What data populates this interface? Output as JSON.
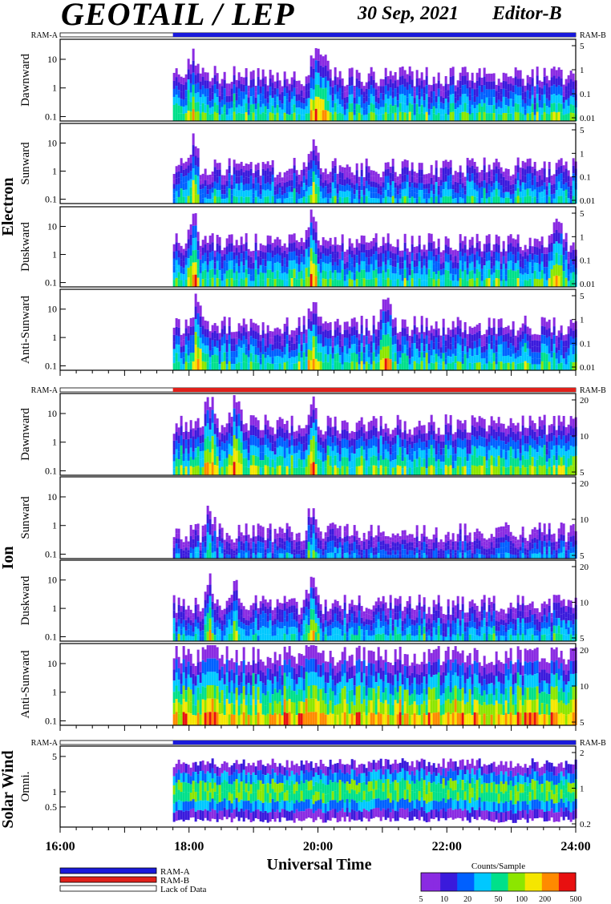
{
  "header": {
    "title": "GEOTAIL / LEP",
    "date": "30 Sep, 2021",
    "editor": "Editor-B"
  },
  "colors": {
    "ram_a": "#1a1adb",
    "ram_b": "#e0201a",
    "lack_of_data": "#ffffff",
    "background": "#ffffff"
  },
  "chart_data": {
    "type": "heatmap",
    "xlabel": "Universal Time",
    "x_ticks": [
      "16:00",
      "18:00",
      "20:00",
      "22:00",
      "24:00"
    ],
    "x_range_hours": [
      16,
      24
    ],
    "data_start_hour": 17.75,
    "sections": [
      {
        "group": "Electron",
        "ram_bar": {
          "left_label": "RAM-A",
          "right_label": "RAM-B",
          "mode": "RAM-A"
        },
        "panels": [
          {
            "ylabel": "Dawnward",
            "y_scale": "log",
            "ylim": [
              0.07,
              50
            ],
            "yticks": [
              "0.1",
              "1",
              "10"
            ],
            "right_ticks": [
              "0.01",
              "0.1",
              "1",
              "5"
            ],
            "level": 0.55,
            "spikes": [
              18.05,
              19.95,
              20.1
            ]
          },
          {
            "ylabel": "Sunward",
            "y_scale": "log",
            "ylim": [
              0.07,
              50
            ],
            "yticks": [
              "0.1",
              "1",
              "10"
            ],
            "right_ticks": [
              "0.01",
              "0.1",
              "1",
              "5"
            ],
            "level": 0.45,
            "spikes": [
              18.05,
              19.9
            ]
          },
          {
            "ylabel": "Duskward",
            "y_scale": "log",
            "ylim": [
              0.07,
              50
            ],
            "yticks": [
              "0.1",
              "1",
              "10"
            ],
            "right_ticks": [
              "0.01",
              "0.1",
              "1",
              "5"
            ],
            "level": 0.55,
            "spikes": [
              18.05,
              19.9,
              23.7
            ]
          },
          {
            "ylabel": "Anti-Sunward",
            "y_scale": "log",
            "ylim": [
              0.07,
              50
            ],
            "yticks": [
              "0.1",
              "1",
              "10"
            ],
            "right_ticks": [
              "0.01",
              "0.1",
              "1",
              "5"
            ],
            "level": 0.55,
            "spikes": [
              18.1,
              19.9,
              21.05
            ]
          }
        ]
      },
      {
        "group": "Ion",
        "ram_bar": {
          "left_label": "RAM-A",
          "right_label": "RAM-B",
          "mode": "RAM-B"
        },
        "panels": [
          {
            "ylabel": "Dawnward",
            "y_scale": "log",
            "ylim": [
              0.07,
              50
            ],
            "yticks": [
              "0.1",
              "1",
              "10"
            ],
            "right_ticks": [
              "5",
              "10",
              "20"
            ],
            "level": 0.62,
            "spikes": [
              18.3,
              18.7,
              19.9
            ]
          },
          {
            "ylabel": "Sunward",
            "y_scale": "log",
            "ylim": [
              0.07,
              50
            ],
            "yticks": [
              "0.1",
              "1",
              "10"
            ],
            "right_ticks": [
              "5",
              "10",
              "20"
            ],
            "level": 0.32,
            "spikes": [
              18.3,
              19.9
            ]
          },
          {
            "ylabel": "Duskward",
            "y_scale": "log",
            "ylim": [
              0.07,
              50
            ],
            "yticks": [
              "0.1",
              "1",
              "10"
            ],
            "right_ticks": [
              "5",
              "10",
              "20"
            ],
            "level": 0.45,
            "spikes": [
              18.3,
              18.7,
              19.9
            ]
          },
          {
            "ylabel": "Anti-Sunward",
            "y_scale": "log",
            "ylim": [
              0.07,
              50
            ],
            "yticks": [
              "0.1",
              "1",
              "10"
            ],
            "right_ticks": [
              "5",
              "10",
              "20"
            ],
            "level": 0.85,
            "spikes": [
              18.3,
              19.9
            ]
          }
        ]
      },
      {
        "group": "Solar Wind",
        "ram_bar": {
          "left_label": "RAM-A",
          "right_label": "RAM-B",
          "mode": "RAM-A"
        },
        "panels": [
          {
            "ylabel": "Omni.",
            "y_scale": "log",
            "ylim": [
              0.2,
              8
            ],
            "yticks": [
              "0.5",
              "1",
              "5"
            ],
            "right_ticks": [
              "0.2",
              "1",
              "2"
            ],
            "level": 0.5,
            "spikes": []
          }
        ]
      }
    ],
    "legend": [
      {
        "label": "RAM-A",
        "color": "#1a1adb"
      },
      {
        "label": "RAM-B",
        "color": "#e0201a"
      },
      {
        "label": "Lack of Data",
        "color": "#ffffff"
      }
    ],
    "colorbar": {
      "title": "Counts/Sample",
      "ticks": [
        "5",
        "10",
        "20",
        "50",
        "100",
        "200",
        "500"
      ],
      "scale": "log",
      "range": [
        5,
        500
      ]
    }
  }
}
